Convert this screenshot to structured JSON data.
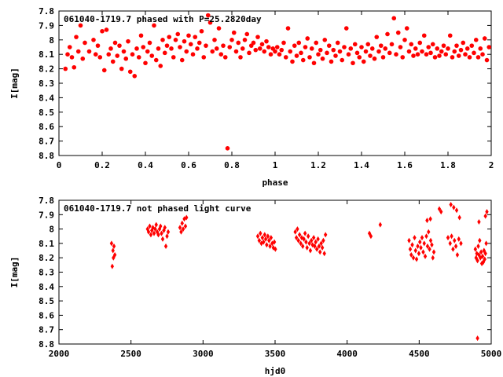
{
  "chart_data": [
    {
      "type": "scatter",
      "title": "061040-1719.7 phased with P=25.2820day",
      "xlabel": "phase",
      "ylabel": "I[mag]",
      "xlim": [
        0,
        2
      ],
      "ylim": [
        8.8,
        7.8
      ],
      "y_inverted": true,
      "grid": false,
      "marker": "filled-circle",
      "color": "#ff0000",
      "x_ticks": [
        "0",
        "0.2",
        "0.4",
        "0.6",
        "0.8",
        "1",
        "1.2",
        "1.4",
        "1.6",
        "1.8",
        "2"
      ],
      "y_ticks": [
        "7.8",
        "7.9",
        "8",
        "8.1",
        "8.2",
        "8.3",
        "8.4",
        "8.5",
        "8.6",
        "8.7",
        "8.8"
      ],
      "points": [
        [
          0.03,
          8.2
        ],
        [
          0.04,
          8.1
        ],
        [
          0.05,
          8.05
        ],
        [
          0.06,
          8.12
        ],
        [
          0.07,
          8.19
        ],
        [
          0.08,
          7.98
        ],
        [
          0.09,
          8.08
        ],
        [
          0.1,
          7.9
        ],
        [
          0.11,
          8.13
        ],
        [
          0.12,
          8.02
        ],
        [
          0.14,
          8.08
        ],
        [
          0.16,
          8.0
        ],
        [
          0.17,
          8.1
        ],
        [
          0.18,
          8.04
        ],
        [
          0.19,
          8.12
        ],
        [
          0.2,
          7.94
        ],
        [
          0.21,
          8.21
        ],
        [
          0.22,
          7.93
        ],
        [
          0.23,
          8.1
        ],
        [
          0.24,
          8.06
        ],
        [
          0.25,
          8.15
        ],
        [
          0.26,
          8.02
        ],
        [
          0.27,
          8.11
        ],
        [
          0.28,
          8.04
        ],
        [
          0.29,
          8.2
        ],
        [
          0.3,
          8.08
        ],
        [
          0.31,
          8.13
        ],
        [
          0.32,
          8.01
        ],
        [
          0.33,
          8.22
        ],
        [
          0.34,
          8.1
        ],
        [
          0.35,
          8.25
        ],
        [
          0.36,
          8.06
        ],
        [
          0.37,
          8.12
        ],
        [
          0.38,
          7.97
        ],
        [
          0.39,
          8.05
        ],
        [
          0.4,
          8.16
        ],
        [
          0.41,
          8.08
        ],
        [
          0.42,
          8.02
        ],
        [
          0.43,
          8.11
        ],
        [
          0.44,
          7.9
        ],
        [
          0.45,
          8.14
        ],
        [
          0.46,
          8.06
        ],
        [
          0.47,
          8.18
        ],
        [
          0.48,
          8.0
        ],
        [
          0.49,
          8.09
        ],
        [
          0.5,
          8.04
        ],
        [
          0.51,
          7.98
        ],
        [
          0.52,
          8.06
        ],
        [
          0.53,
          8.12
        ],
        [
          0.54,
          8.0
        ],
        [
          0.55,
          7.96
        ],
        [
          0.56,
          8.05
        ],
        [
          0.57,
          8.14
        ],
        [
          0.58,
          8.01
        ],
        [
          0.59,
          8.08
        ],
        [
          0.6,
          7.97
        ],
        [
          0.61,
          8.03
        ],
        [
          0.62,
          8.1
        ],
        [
          0.63,
          7.98
        ],
        [
          0.64,
          8.06
        ],
        [
          0.65,
          8.02
        ],
        [
          0.66,
          7.94
        ],
        [
          0.67,
          8.12
        ],
        [
          0.68,
          8.04
        ],
        [
          0.69,
          7.83
        ],
        [
          0.7,
          7.88
        ],
        [
          0.71,
          8.08
        ],
        [
          0.72,
          8.0
        ],
        [
          0.73,
          8.06
        ],
        [
          0.74,
          7.92
        ],
        [
          0.75,
          8.1
        ],
        [
          0.76,
          8.04
        ],
        [
          0.77,
          8.12
        ],
        [
          0.78,
          8.75
        ],
        [
          0.79,
          8.05
        ],
        [
          0.8,
          8.0
        ],
        [
          0.81,
          7.95
        ],
        [
          0.82,
          8.08
        ],
        [
          0.83,
          8.02
        ],
        [
          0.84,
          8.12
        ],
        [
          0.85,
          8.06
        ],
        [
          0.86,
          8.0
        ],
        [
          0.87,
          7.96
        ],
        [
          0.88,
          8.09
        ],
        [
          0.89,
          8.04
        ],
        [
          0.9,
          8.02
        ],
        [
          0.91,
          8.07
        ],
        [
          0.92,
          7.98
        ],
        [
          0.93,
          8.06
        ],
        [
          0.94,
          8.03
        ],
        [
          0.95,
          8.08
        ],
        [
          0.96,
          8.01
        ],
        [
          0.97,
          8.05
        ],
        [
          0.98,
          8.1
        ],
        [
          0.99,
          8.06
        ],
        [
          1.0,
          8.08
        ],
        [
          1.01,
          8.05
        ],
        [
          1.02,
          8.1
        ],
        [
          1.03,
          8.07
        ],
        [
          1.04,
          8.02
        ],
        [
          1.05,
          8.12
        ],
        [
          1.06,
          7.92
        ],
        [
          1.07,
          8.08
        ],
        [
          1.08,
          8.15
        ],
        [
          1.09,
          8.04
        ],
        [
          1.1,
          8.11
        ],
        [
          1.11,
          8.02
        ],
        [
          1.12,
          8.09
        ],
        [
          1.13,
          8.14
        ],
        [
          1.14,
          8.05
        ],
        [
          1.15,
          7.99
        ],
        [
          1.16,
          8.12
        ],
        [
          1.17,
          8.06
        ],
        [
          1.18,
          8.16
        ],
        [
          1.19,
          8.02
        ],
        [
          1.2,
          8.1
        ],
        [
          1.21,
          8.07
        ],
        [
          1.22,
          8.13
        ],
        [
          1.23,
          8.0
        ],
        [
          1.24,
          8.09
        ],
        [
          1.25,
          8.04
        ],
        [
          1.26,
          8.15
        ],
        [
          1.27,
          8.07
        ],
        [
          1.28,
          8.11
        ],
        [
          1.29,
          8.02
        ],
        [
          1.3,
          8.08
        ],
        [
          1.31,
          8.14
        ],
        [
          1.32,
          8.05
        ],
        [
          1.33,
          7.92
        ],
        [
          1.34,
          8.1
        ],
        [
          1.35,
          8.06
        ],
        [
          1.36,
          8.16
        ],
        [
          1.37,
          8.03
        ],
        [
          1.38,
          8.09
        ],
        [
          1.39,
          8.12
        ],
        [
          1.4,
          8.05
        ],
        [
          1.41,
          8.15
        ],
        [
          1.42,
          8.08
        ],
        [
          1.43,
          8.03
        ],
        [
          1.44,
          8.11
        ],
        [
          1.45,
          8.06
        ],
        [
          1.46,
          8.13
        ],
        [
          1.47,
          7.98
        ],
        [
          1.48,
          8.08
        ],
        [
          1.49,
          8.04
        ],
        [
          1.5,
          8.12
        ],
        [
          1.51,
          8.06
        ],
        [
          1.52,
          7.96
        ],
        [
          1.53,
          8.09
        ],
        [
          1.54,
          8.03
        ],
        [
          1.55,
          7.85
        ],
        [
          1.56,
          8.1
        ],
        [
          1.57,
          7.95
        ],
        [
          1.58,
          8.05
        ],
        [
          1.59,
          8.12
        ],
        [
          1.6,
          8.0
        ],
        [
          1.61,
          7.92
        ],
        [
          1.62,
          8.08
        ],
        [
          1.63,
          8.03
        ],
        [
          1.64,
          8.11
        ],
        [
          1.65,
          8.06
        ],
        [
          1.66,
          8.1
        ],
        [
          1.67,
          8.02
        ],
        [
          1.68,
          8.08
        ],
        [
          1.69,
          7.97
        ],
        [
          1.7,
          8.1
        ],
        [
          1.71,
          8.05
        ],
        [
          1.72,
          8.09
        ],
        [
          1.73,
          8.03
        ],
        [
          1.74,
          8.12
        ],
        [
          1.75,
          8.06
        ],
        [
          1.76,
          8.11
        ],
        [
          1.77,
          8.08
        ],
        [
          1.78,
          8.04
        ],
        [
          1.79,
          8.1
        ],
        [
          1.8,
          8.06
        ],
        [
          1.81,
          7.97
        ],
        [
          1.82,
          8.12
        ],
        [
          1.83,
          8.08
        ],
        [
          1.84,
          8.04
        ],
        [
          1.85,
          8.11
        ],
        [
          1.86,
          8.07
        ],
        [
          1.87,
          8.02
        ],
        [
          1.88,
          8.1
        ],
        [
          1.89,
          8.06
        ],
        [
          1.9,
          8.12
        ],
        [
          1.91,
          8.04
        ],
        [
          1.92,
          8.09
        ],
        [
          1.93,
          8.0
        ],
        [
          1.94,
          8.12
        ],
        [
          1.95,
          8.06
        ],
        [
          1.96,
          8.1
        ],
        [
          1.97,
          7.99
        ],
        [
          1.98,
          8.14
        ],
        [
          1.99,
          8.05
        ]
      ]
    },
    {
      "type": "scatter",
      "title": "061040-1719.7 not phased light curve",
      "xlabel": "hjd0",
      "ylabel": "I[mag]",
      "xlim": [
        2000,
        5000
      ],
      "ylim": [
        8.8,
        7.8
      ],
      "y_inverted": true,
      "grid": false,
      "marker": "diamond",
      "color": "#ff0000",
      "x_ticks": [
        "2000",
        "2500",
        "3000",
        "3500",
        "4000",
        "4500",
        "5000"
      ],
      "y_ticks": [
        "7.8",
        "7.9",
        "8",
        "8.1",
        "8.2",
        "8.3",
        "8.4",
        "8.5",
        "8.6",
        "8.7",
        "8.8"
      ],
      "points": [
        [
          2365,
          8.1
        ],
        [
          2370,
          8.26
        ],
        [
          2375,
          8.15
        ],
        [
          2378,
          8.2
        ],
        [
          2382,
          8.12
        ],
        [
          2388,
          8.18
        ],
        [
          2615,
          8.0
        ],
        [
          2622,
          8.02
        ],
        [
          2630,
          7.98
        ],
        [
          2638,
          8.04
        ],
        [
          2645,
          8.01
        ],
        [
          2652,
          7.99
        ],
        [
          2660,
          8.03
        ],
        [
          2668,
          8.0
        ],
        [
          2675,
          7.97
        ],
        [
          2682,
          8.02
        ],
        [
          2690,
          8.04
        ],
        [
          2698,
          8.0
        ],
        [
          2705,
          7.98
        ],
        [
          2712,
          8.03
        ],
        [
          2720,
          8.07
        ],
        [
          2728,
          8.01
        ],
        [
          2735,
          7.99
        ],
        [
          2742,
          8.12
        ],
        [
          2750,
          8.05
        ],
        [
          2758,
          8.02
        ],
        [
          2840,
          7.99
        ],
        [
          2848,
          8.02
        ],
        [
          2855,
          7.96
        ],
        [
          2862,
          8.0
        ],
        [
          2870,
          7.93
        ],
        [
          2878,
          7.98
        ],
        [
          2885,
          7.92
        ],
        [
          3380,
          8.05
        ],
        [
          3390,
          8.08
        ],
        [
          3398,
          8.03
        ],
        [
          3405,
          8.1
        ],
        [
          3412,
          8.06
        ],
        [
          3420,
          8.09
        ],
        [
          3428,
          8.04
        ],
        [
          3435,
          8.07
        ],
        [
          3442,
          8.11
        ],
        [
          3450,
          8.05
        ],
        [
          3458,
          8.08
        ],
        [
          3465,
          8.12
        ],
        [
          3472,
          8.06
        ],
        [
          3480,
          8.1
        ],
        [
          3488,
          8.13
        ],
        [
          3495,
          8.09
        ],
        [
          3502,
          8.14
        ],
        [
          3640,
          8.02
        ],
        [
          3648,
          8.06
        ],
        [
          3655,
          8.0
        ],
        [
          3662,
          8.08
        ],
        [
          3670,
          8.04
        ],
        [
          3678,
          8.1
        ],
        [
          3685,
          8.06
        ],
        [
          3692,
          8.12
        ],
        [
          3700,
          8.07
        ],
        [
          3708,
          8.03
        ],
        [
          3715,
          8.09
        ],
        [
          3722,
          8.13
        ],
        [
          3730,
          8.05
        ],
        [
          3738,
          8.1
        ],
        [
          3745,
          8.15
        ],
        [
          3752,
          8.08
        ],
        [
          3760,
          8.11
        ],
        [
          3768,
          8.06
        ],
        [
          3775,
          8.12
        ],
        [
          3782,
          8.09
        ],
        [
          3790,
          8.14
        ],
        [
          3798,
          8.07
        ],
        [
          3805,
          8.12
        ],
        [
          3812,
          8.16
        ],
        [
          3820,
          8.1
        ],
        [
          3828,
          8.13
        ],
        [
          3835,
          8.08
        ],
        [
          3842,
          8.17
        ],
        [
          3850,
          8.04
        ],
        [
          4155,
          8.03
        ],
        [
          4165,
          8.05
        ],
        [
          4230,
          7.97
        ],
        [
          4430,
          8.08
        ],
        [
          4438,
          8.14
        ],
        [
          4445,
          8.18
        ],
        [
          4452,
          8.11
        ],
        [
          4460,
          8.2
        ],
        [
          4468,
          8.06
        ],
        [
          4475,
          8.15
        ],
        [
          4482,
          8.21
        ],
        [
          4490,
          8.12
        ],
        [
          4498,
          8.17
        ],
        [
          4505,
          8.09
        ],
        [
          4512,
          8.13
        ],
        [
          4520,
          8.06
        ],
        [
          4528,
          8.16
        ],
        [
          4535,
          8.1
        ],
        [
          4542,
          8.19
        ],
        [
          4550,
          8.05
        ],
        [
          4558,
          8.12
        ],
        [
          4565,
          8.02
        ],
        [
          4572,
          8.14
        ],
        [
          4580,
          8.08
        ],
        [
          4588,
          8.11
        ],
        [
          4595,
          8.2
        ],
        [
          4602,
          8.16
        ],
        [
          4555,
          7.94
        ],
        [
          4578,
          7.93
        ],
        [
          4640,
          7.86
        ],
        [
          4652,
          7.88
        ],
        [
          4700,
          8.06
        ],
        [
          4715,
          8.1
        ],
        [
          4725,
          8.05
        ],
        [
          4735,
          8.14
        ],
        [
          4745,
          8.08
        ],
        [
          4755,
          8.12
        ],
        [
          4765,
          8.18
        ],
        [
          4775,
          8.07
        ],
        [
          4720,
          7.83
        ],
        [
          4740,
          7.85
        ],
        [
          4760,
          7.87
        ],
        [
          4780,
          7.92
        ],
        [
          4790,
          8.1
        ],
        [
          4890,
          8.14
        ],
        [
          4895,
          8.2
        ],
        [
          4900,
          8.17
        ],
        [
          4905,
          8.22
        ],
        [
          4910,
          8.12
        ],
        [
          4915,
          8.18
        ],
        [
          4920,
          8.08
        ],
        [
          4925,
          8.2
        ],
        [
          4930,
          8.16
        ],
        [
          4935,
          8.24
        ],
        [
          4940,
          8.19
        ],
        [
          4945,
          8.23
        ],
        [
          4950,
          8.15
        ],
        [
          4955,
          8.21
        ],
        [
          4960,
          8.17
        ],
        [
          4965,
          8.1
        ],
        [
          4905,
          8.76
        ],
        [
          4915,
          7.95
        ],
        [
          4960,
          7.91
        ],
        [
          4970,
          7.88
        ]
      ]
    }
  ]
}
